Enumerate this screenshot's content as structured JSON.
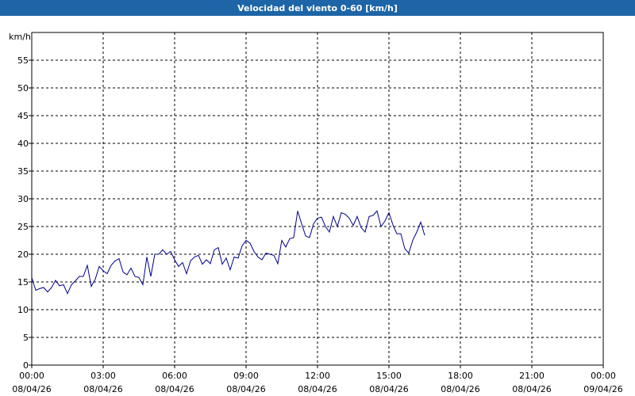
{
  "chart_data": {
    "type": "line",
    "title": "Velocidad del viento 0-60 [km/h]",
    "y_unit": "km/h",
    "grid": true,
    "xlim": [
      0,
      1440
    ],
    "ylim": [
      0,
      60
    ],
    "yticks": [
      0,
      5,
      10,
      15,
      20,
      25,
      30,
      35,
      40,
      45,
      50,
      55
    ],
    "xticks": [
      {
        "value": 0,
        "label": "00:00",
        "date": "08/04/26"
      },
      {
        "value": 180,
        "label": "03:00",
        "date": "08/04/26"
      },
      {
        "value": 360,
        "label": "06:00",
        "date": "08/04/26"
      },
      {
        "value": 540,
        "label": "09:00",
        "date": "08/04/26"
      },
      {
        "value": 720,
        "label": "12:00",
        "date": "08/04/26"
      },
      {
        "value": 900,
        "label": "15:00",
        "date": "08/04/26"
      },
      {
        "value": 1080,
        "label": "18:00",
        "date": "08/04/26"
      },
      {
        "value": 1260,
        "label": "21:00",
        "date": "08/04/26"
      },
      {
        "value": 1440,
        "label": "00:00",
        "date": "09/04/26"
      }
    ],
    "x": [
      0,
      10,
      20,
      30,
      40,
      50,
      60,
      70,
      80,
      90,
      100,
      110,
      120,
      130,
      140,
      150,
      160,
      170,
      180,
      190,
      200,
      210,
      220,
      230,
      240,
      250,
      260,
      270,
      280,
      290,
      300,
      310,
      320,
      330,
      340,
      350,
      360,
      370,
      380,
      390,
      400,
      410,
      420,
      430,
      440,
      450,
      460,
      470,
      480,
      490,
      500,
      510,
      520,
      530,
      540,
      550,
      560,
      570,
      580,
      590,
      600,
      610,
      620,
      630,
      640,
      650,
      660,
      670,
      680,
      690,
      700,
      710,
      720,
      730,
      740,
      750,
      760,
      770,
      780,
      790,
      800,
      810,
      820,
      830,
      840,
      850,
      860,
      870,
      880,
      890,
      900,
      910,
      920,
      930,
      940,
      950,
      960,
      970,
      980,
      990
    ],
    "series": [
      {
        "color": "#00008b",
        "values": [
          15.8,
          13.5,
          13.8,
          14,
          13.2,
          14,
          15.3,
          14.3,
          14.5,
          12.9,
          14.5,
          15.2,
          16,
          16,
          18,
          14.2,
          15.5,
          17.8,
          17,
          16.5,
          18,
          18.8,
          19.2,
          16.8,
          16.3,
          17.5,
          16,
          15.8,
          14.5,
          19.5,
          16,
          20,
          20,
          20.8,
          20,
          20.5,
          19,
          17.8,
          18.5,
          16.5,
          18.8,
          19.5,
          19.8,
          18.2,
          19,
          18.3,
          20.8,
          21.2,
          18.2,
          19.3,
          17.2,
          19.5,
          19.3,
          21.5,
          22.5,
          22,
          20.5,
          19.5,
          19,
          20.2,
          20,
          19.8,
          18.3,
          22.5,
          21.3,
          22.8,
          23,
          27.8,
          25.5,
          23.3,
          23,
          25.5,
          26.5,
          26.7,
          25,
          24,
          26.8,
          25,
          27.5,
          27.2,
          26.5,
          25.2,
          26.8,
          24.8,
          24,
          26.8,
          27,
          27.8,
          25,
          26,
          27.5,
          25.3,
          23.7,
          23.7,
          21,
          20.2,
          22.5,
          24,
          25.8,
          23.4
        ]
      }
    ]
  }
}
